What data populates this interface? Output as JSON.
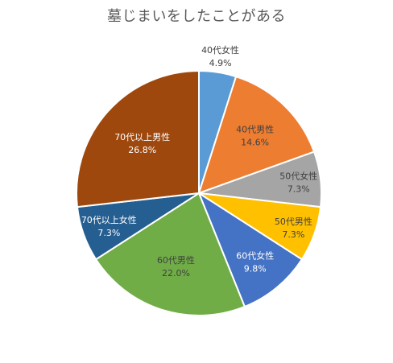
{
  "chart_data": {
    "type": "pie",
    "title": "墓じまいをしたことがある",
    "start_angle_deg": 0,
    "direction": "clockwise",
    "slices": [
      {
        "label": "40代女性",
        "value": 4.9,
        "value_label": "4.9%",
        "color": "#5b9bd5",
        "label_color": "#404040"
      },
      {
        "label": "40代男性",
        "value": 14.6,
        "value_label": "14.6%",
        "color": "#ed7d31",
        "label_color": "#404040"
      },
      {
        "label": "50代女性",
        "value": 7.3,
        "value_label": "7.3%",
        "color": "#a5a5a5",
        "label_color": "#404040"
      },
      {
        "label": "50代男性",
        "value": 7.3,
        "value_label": "7.3%",
        "color": "#ffc000",
        "label_color": "#404040"
      },
      {
        "label": "60代女性",
        "value": 9.8,
        "value_label": "9.8%",
        "color": "#4472c4",
        "label_color": "#ffffff"
      },
      {
        "label": "60代男性",
        "value": 22.0,
        "value_label": "22.0%",
        "color": "#70ad47",
        "label_color": "#404040"
      },
      {
        "label": "70代以上女性",
        "value": 7.3,
        "value_label": "7.3%",
        "color": "#255e91",
        "label_color": "#ffffff"
      },
      {
        "label": "70代以上男性",
        "value": 26.8,
        "value_label": "26.8%",
        "color": "#9e480e",
        "label_color": "#ffffff"
      }
    ]
  }
}
